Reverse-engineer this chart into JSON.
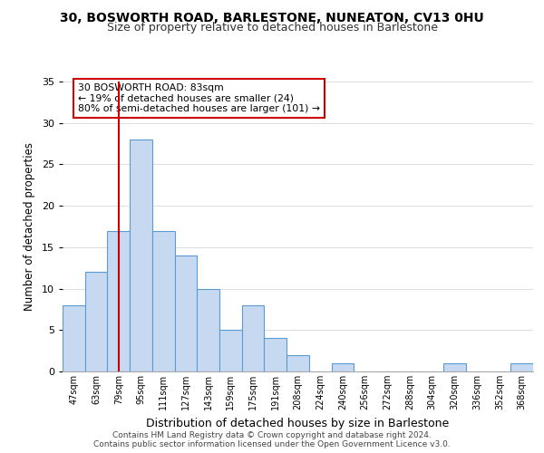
{
  "title": "30, BOSWORTH ROAD, BARLESTONE, NUNEATON, CV13 0HU",
  "subtitle": "Size of property relative to detached houses in Barlestone",
  "xlabel": "Distribution of detached houses by size in Barlestone",
  "ylabel": "Number of detached properties",
  "bar_labels": [
    "47sqm",
    "63sqm",
    "79sqm",
    "95sqm",
    "111sqm",
    "127sqm",
    "143sqm",
    "159sqm",
    "175sqm",
    "191sqm",
    "208sqm",
    "224sqm",
    "240sqm",
    "256sqm",
    "272sqm",
    "288sqm",
    "304sqm",
    "320sqm",
    "336sqm",
    "352sqm",
    "368sqm"
  ],
  "bar_values": [
    8,
    12,
    17,
    28,
    17,
    14,
    10,
    5,
    8,
    4,
    2,
    0,
    1,
    0,
    0,
    0,
    0,
    1,
    0,
    0,
    1
  ],
  "bar_color": "#c6d9f0",
  "bar_edge_color": "#5b9bd5",
  "vline_x_index": 2,
  "vline_color": "#cc0000",
  "ylim": [
    0,
    35
  ],
  "yticks": [
    0,
    5,
    10,
    15,
    20,
    25,
    30,
    35
  ],
  "annotation_text": "30 BOSWORTH ROAD: 83sqm\n← 19% of detached houses are smaller (24)\n80% of semi-detached houses are larger (101) →",
  "annotation_box_color": "#ffffff",
  "annotation_box_edge": "#cc0000",
  "footer_line1": "Contains HM Land Registry data © Crown copyright and database right 2024.",
  "footer_line2": "Contains public sector information licensed under the Open Government Licence v3.0.",
  "background_color": "#ffffff",
  "grid_color": "#dddddd"
}
